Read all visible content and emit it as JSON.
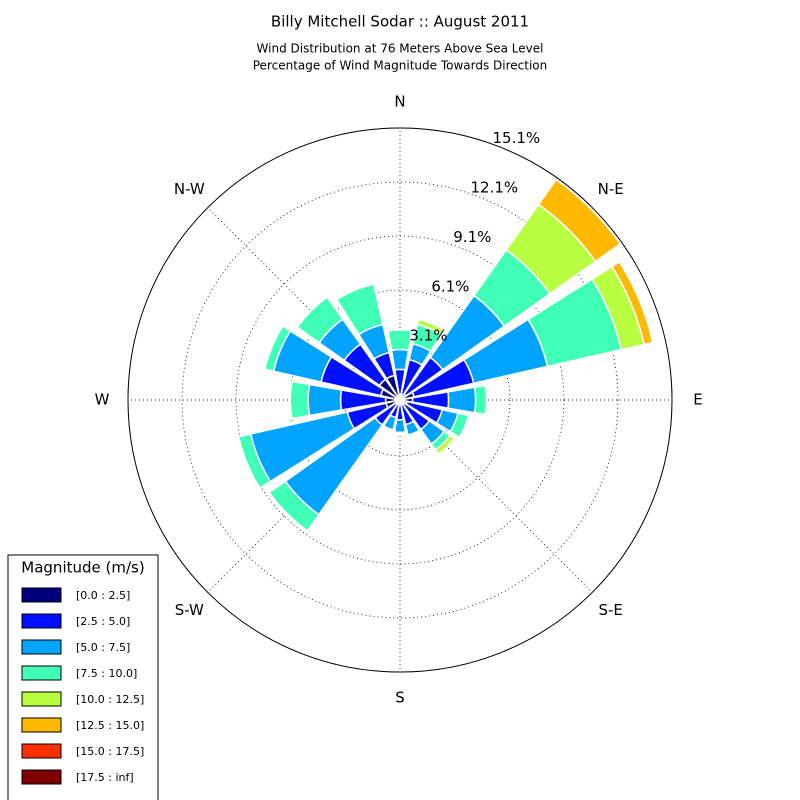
{
  "chart_data": {
    "type": "windrose",
    "title": "Billy Mitchell Sodar :: August 2011",
    "subtitle": [
      "Wind Distribution at 76 Meters Above Sea Level",
      "Percentage of Wind Magnitude Towards Direction"
    ],
    "categories": [
      "N",
      null,
      "N-E",
      null,
      "E",
      null,
      "S-E",
      null,
      "S",
      null,
      "S-W",
      null,
      "W",
      null,
      "N-W",
      null
    ],
    "rlim": [
      0,
      15.1
    ],
    "rticks": [
      {
        "value": 3.1,
        "label": "3.1%"
      },
      {
        "value": 6.1,
        "label": "6.1%"
      },
      {
        "value": 9.1,
        "label": "9.1%"
      },
      {
        "value": 12.1,
        "label": "12.1%"
      },
      {
        "value": 15.1,
        "label": "15.1%"
      }
    ],
    "grid": true,
    "legend_title": "Magnitude (m/s)",
    "legend": "lower left",
    "series": [
      {
        "name": "[0.0 : 2.5]",
        "color": "#00007f",
        "values": [
          0.3,
          0.3,
          0.4,
          0.8,
          0.7,
          0.4,
          0.3,
          0.2,
          0.1,
          0.2,
          0.3,
          0.8,
          0.8,
          1.1,
          1.4,
          1.4
        ]
      },
      {
        "name": "[2.5 : 5.0]",
        "color": "#0010ff",
        "values": [
          1.4,
          2.0,
          2.5,
          3.4,
          2.0,
          2.0,
          1.7,
          1.2,
          1.0,
          0.8,
          1.4,
          2.2,
          2.5,
          3.4,
          2.4,
          1.3
        ]
      },
      {
        "name": "[5.0 : 7.5]",
        "color": "#00a4ff",
        "values": [
          1.1,
          0.9,
          4.2,
          4.2,
          1.5,
          0.9,
          1.0,
          0.6,
          0.7,
          0.7,
          6.1,
          5.5,
          1.8,
          2.7,
          1.7,
          1.6
        ]
      },
      {
        "name": "[7.5 : 10.0]",
        "color": "#40ffb7",
        "values": [
          1.1,
          1.1,
          3.1,
          4.2,
          0.6,
          0.6,
          0.4,
          0,
          0,
          0.1,
          1.1,
          0.7,
          1.0,
          0.5,
          1.5,
          2.3
        ]
      },
      {
        "name": "[10.0 : 12.5]",
        "color": "#b7ff40",
        "values": [
          0,
          0.3,
          3.1,
          1.3,
          0,
          0,
          0.3,
          0,
          0,
          0,
          0,
          0,
          0,
          0,
          0,
          0
        ]
      },
      {
        "name": "[12.5 : 15.0]",
        "color": "#ffb900",
        "values": [
          0,
          0,
          1.7,
          0.5,
          0,
          0,
          0,
          0,
          0,
          0,
          0,
          0,
          0,
          0,
          0,
          0
        ]
      },
      {
        "name": "[15.0 : 17.5]",
        "color": "#ff3000",
        "values": [
          0,
          0,
          0,
          0,
          0,
          0,
          0,
          0,
          0,
          0,
          0,
          0,
          0,
          0,
          0,
          0
        ]
      },
      {
        "name": "[17.5 : inf]",
        "color": "#7f0000",
        "values": [
          0,
          0,
          0,
          0,
          0,
          0,
          0,
          0,
          0,
          0,
          0,
          0,
          0,
          0,
          0,
          0
        ]
      }
    ]
  }
}
